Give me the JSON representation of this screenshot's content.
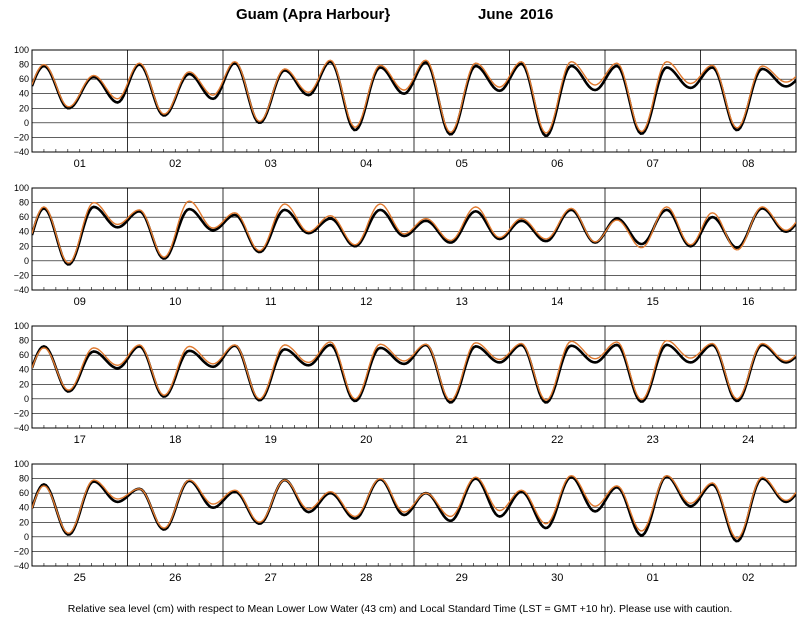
{
  "chart_data": {
    "type": "line",
    "title_location": "Guam (Apra Harbour}",
    "title_month": "June",
    "title_year": "2016",
    "caption": "Relative sea level (cm) with respect to Mean Lower Low Water (43 cm) and Local Standard Time (LST = GMT +10 hr). Please use with caution.",
    "ylim": [
      -40,
      100
    ],
    "yticks": [
      "100",
      "80",
      "60",
      "40",
      "20",
      "0",
      "−20",
      "−40"
    ],
    "grid": true,
    "series": [
      {
        "color": "#000000"
      },
      {
        "color": "#e07a30"
      }
    ],
    "panels": [
      {
        "days": [
          "01",
          "02",
          "03",
          "04",
          "05",
          "06",
          "07",
          "08"
        ],
        "observed": [
          {
            "day": 1,
            "h1": 78,
            "l1": 20,
            "h2": 63,
            "l2": 28
          },
          {
            "day": 2,
            "h1": 80,
            "l1": 10,
            "h2": 67,
            "l2": 33
          },
          {
            "day": 3,
            "h1": 82,
            "l1": 0,
            "h2": 72,
            "l2": 38
          },
          {
            "day": 4,
            "h1": 84,
            "l1": -10,
            "h2": 76,
            "l2": 40
          },
          {
            "day": 5,
            "h1": 83,
            "l1": -16,
            "h2": 78,
            "l2": 44
          },
          {
            "day": 6,
            "h1": 81,
            "l1": -18,
            "h2": 78,
            "l2": 45
          },
          {
            "day": 7,
            "h1": 78,
            "l1": -15,
            "h2": 76,
            "l2": 48
          },
          {
            "day": 8,
            "h1": 76,
            "l1": -10,
            "h2": 74,
            "l2": 50
          }
        ],
        "predicted": [
          {
            "day": 1,
            "h1": 80,
            "l1": 22,
            "h2": 65,
            "l2": 33
          },
          {
            "day": 2,
            "h1": 82,
            "l1": 12,
            "h2": 70,
            "l2": 38
          },
          {
            "day": 3,
            "h1": 84,
            "l1": 2,
            "h2": 74,
            "l2": 42
          },
          {
            "day": 4,
            "h1": 86,
            "l1": -6,
            "h2": 79,
            "l2": 45
          },
          {
            "day": 5,
            "h1": 86,
            "l1": -13,
            "h2": 82,
            "l2": 49
          },
          {
            "day": 6,
            "h1": 84,
            "l1": -14,
            "h2": 84,
            "l2": 52
          },
          {
            "day": 7,
            "h1": 82,
            "l1": -12,
            "h2": 84,
            "l2": 54
          },
          {
            "day": 8,
            "h1": 79,
            "l1": -7,
            "h2": 78,
            "l2": 56
          }
        ]
      },
      {
        "days": [
          "09",
          "10",
          "11",
          "12",
          "13",
          "14",
          "15",
          "16"
        ],
        "observed": [
          {
            "day": 9,
            "h1": 72,
            "l1": -5,
            "h2": 74,
            "l2": 46
          },
          {
            "day": 10,
            "h1": 68,
            "l1": 3,
            "h2": 71,
            "l2": 42
          },
          {
            "day": 11,
            "h1": 63,
            "l1": 12,
            "h2": 70,
            "l2": 38
          },
          {
            "day": 12,
            "h1": 58,
            "l1": 20,
            "h2": 70,
            "l2": 34
          },
          {
            "day": 13,
            "h1": 55,
            "l1": 25,
            "h2": 68,
            "l2": 30
          },
          {
            "day": 14,
            "h1": 55,
            "l1": 27,
            "h2": 70,
            "l2": 25
          },
          {
            "day": 15,
            "h1": 58,
            "l1": 23,
            "h2": 70,
            "l2": 20
          },
          {
            "day": 16,
            "h1": 60,
            "l1": 18,
            "h2": 72,
            "l2": 40
          }
        ],
        "predicted": [
          {
            "day": 9,
            "h1": 74,
            "l1": -3,
            "h2": 80,
            "l2": 50
          },
          {
            "day": 10,
            "h1": 70,
            "l1": 5,
            "h2": 82,
            "l2": 45
          },
          {
            "day": 11,
            "h1": 66,
            "l1": 14,
            "h2": 78,
            "l2": 40
          },
          {
            "day": 12,
            "h1": 62,
            "l1": 22,
            "h2": 78,
            "l2": 37
          },
          {
            "day": 13,
            "h1": 58,
            "l1": 28,
            "h2": 74,
            "l2": 32
          },
          {
            "day": 14,
            "h1": 58,
            "l1": 30,
            "h2": 72,
            "l2": 26
          },
          {
            "day": 15,
            "h1": 56,
            "l1": 18,
            "h2": 74,
            "l2": 22
          },
          {
            "day": 16,
            "h1": 66,
            "l1": 15,
            "h2": 74,
            "l2": 42
          }
        ]
      },
      {
        "days": [
          "17",
          "18",
          "19",
          "20",
          "21",
          "22",
          "23",
          "24"
        ],
        "observed": [
          {
            "day": 17,
            "h1": 72,
            "l1": 10,
            "h2": 65,
            "l2": 42
          },
          {
            "day": 18,
            "h1": 72,
            "l1": 3,
            "h2": 66,
            "l2": 44
          },
          {
            "day": 19,
            "h1": 73,
            "l1": -2,
            "h2": 68,
            "l2": 46
          },
          {
            "day": 20,
            "h1": 74,
            "l1": -3,
            "h2": 70,
            "l2": 48
          },
          {
            "day": 21,
            "h1": 74,
            "l1": -5,
            "h2": 72,
            "l2": 50
          },
          {
            "day": 22,
            "h1": 74,
            "l1": -5,
            "h2": 73,
            "l2": 50
          },
          {
            "day": 23,
            "h1": 74,
            "l1": -4,
            "h2": 74,
            "l2": 50
          },
          {
            "day": 24,
            "h1": 74,
            "l1": -3,
            "h2": 74,
            "l2": 50
          }
        ],
        "predicted": [
          {
            "day": 17,
            "h1": 70,
            "l1": 12,
            "h2": 70,
            "l2": 46
          },
          {
            "day": 18,
            "h1": 74,
            "l1": 5,
            "h2": 72,
            "l2": 48
          },
          {
            "day": 19,
            "h1": 74,
            "l1": 0,
            "h2": 74,
            "l2": 50
          },
          {
            "day": 20,
            "h1": 78,
            "l1": 0,
            "h2": 75,
            "l2": 52
          },
          {
            "day": 21,
            "h1": 75,
            "l1": -2,
            "h2": 77,
            "l2": 54
          },
          {
            "day": 22,
            "h1": 76,
            "l1": -2,
            "h2": 79,
            "l2": 55
          },
          {
            "day": 23,
            "h1": 78,
            "l1": -1,
            "h2": 80,
            "l2": 56
          },
          {
            "day": 24,
            "h1": 76,
            "l1": 0,
            "h2": 76,
            "l2": 52
          }
        ]
      },
      {
        "days": [
          "25",
          "26",
          "27",
          "28",
          "29",
          "30",
          "01",
          "02"
        ],
        "observed": [
          {
            "day": 25,
            "h1": 72,
            "l1": 3,
            "h2": 76,
            "l2": 48
          },
          {
            "day": 26,
            "h1": 66,
            "l1": 10,
            "h2": 77,
            "l2": 40
          },
          {
            "day": 27,
            "h1": 62,
            "l1": 18,
            "h2": 78,
            "l2": 34
          },
          {
            "day": 28,
            "h1": 60,
            "l1": 25,
            "h2": 79,
            "l2": 30
          },
          {
            "day": 29,
            "h1": 60,
            "l1": 22,
            "h2": 80,
            "l2": 28
          },
          {
            "day": 30,
            "h1": 62,
            "l1": 12,
            "h2": 82,
            "l2": 35
          },
          {
            "day": 31,
            "h1": 68,
            "l1": 2,
            "h2": 83,
            "l2": 42
          },
          {
            "day": 32,
            "h1": 72,
            "l1": -6,
            "h2": 80,
            "l2": 48
          }
        ],
        "predicted": [
          {
            "day": 25,
            "h1": 70,
            "l1": 5,
            "h2": 78,
            "l2": 52
          },
          {
            "day": 26,
            "h1": 66,
            "l1": 12,
            "h2": 78,
            "l2": 45
          },
          {
            "day": 27,
            "h1": 64,
            "l1": 20,
            "h2": 78,
            "l2": 38
          },
          {
            "day": 28,
            "h1": 62,
            "l1": 28,
            "h2": 80,
            "l2": 34
          },
          {
            "day": 29,
            "h1": 60,
            "l1": 28,
            "h2": 82,
            "l2": 36
          },
          {
            "day": 30,
            "h1": 64,
            "l1": 18,
            "h2": 84,
            "l2": 42
          },
          {
            "day": 31,
            "h1": 70,
            "l1": 8,
            "h2": 84,
            "l2": 46
          },
          {
            "day": 32,
            "h1": 74,
            "l1": -2,
            "h2": 82,
            "l2": 50
          }
        ]
      }
    ]
  }
}
